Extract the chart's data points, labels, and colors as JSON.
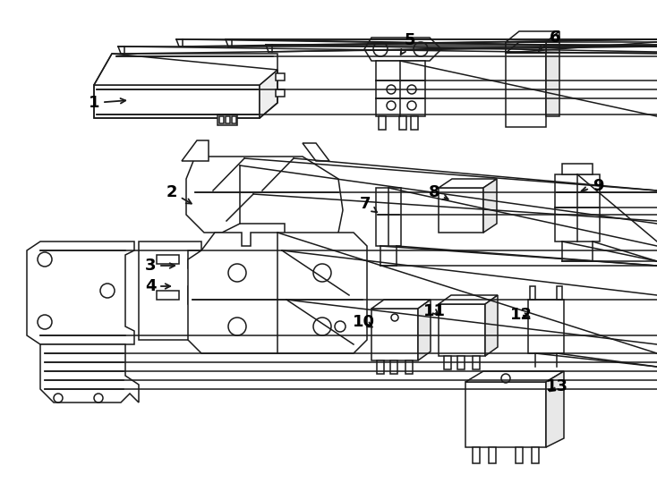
{
  "background_color": "#ffffff",
  "line_color": "#1a1a1a",
  "label_color": "#000000",
  "fig_width": 7.34,
  "fig_height": 5.4,
  "dpi": 100
}
